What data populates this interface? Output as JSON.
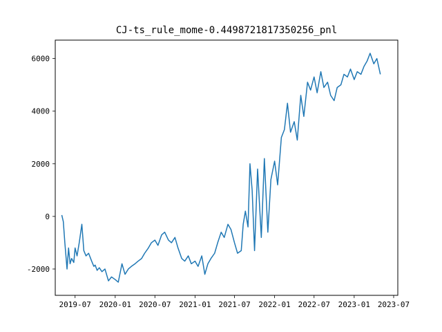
{
  "chart_data": {
    "type": "line",
    "title": "CJ-ts_rule_mome-0.4498721817350256_pnl",
    "xlabel": "",
    "ylabel": "",
    "x_range": [
      "2019-04-01",
      "2023-07-20"
    ],
    "ylim": [
      -3000,
      6700
    ],
    "grid": false,
    "legend": "none",
    "x_ticks": [
      "2019-07",
      "2020-01",
      "2020-07",
      "2021-01",
      "2021-07",
      "2022-01",
      "2022-07",
      "2023-01",
      "2023-07"
    ],
    "y_ticks": [
      -2000,
      0,
      2000,
      4000,
      6000
    ],
    "line_color": "#1f77b4",
    "series": [
      {
        "x": [
          "2019-05-01",
          "2019-05-08",
          "2019-05-15",
          "2019-05-25",
          "2019-06-01",
          "2019-06-08",
          "2019-06-15",
          "2019-06-25",
          "2019-07-01",
          "2019-07-10",
          "2019-07-20",
          "2019-08-01",
          "2019-08-10",
          "2019-08-20",
          "2019-09-01",
          "2019-09-15",
          "2019-09-25",
          "2019-10-01",
          "2019-10-10",
          "2019-10-20",
          "2019-11-01",
          "2019-11-15",
          "2019-12-01",
          "2019-12-15",
          "2020-01-01",
          "2020-01-15",
          "2020-02-01",
          "2020-02-15",
          "2020-03-01",
          "2020-03-15",
          "2020-04-01",
          "2020-04-15",
          "2020-05-01",
          "2020-05-15",
          "2020-06-01",
          "2020-06-15",
          "2020-07-01",
          "2020-07-15",
          "2020-08-01",
          "2020-08-15",
          "2020-09-01",
          "2020-09-15",
          "2020-10-01",
          "2020-10-15",
          "2020-11-01",
          "2020-11-15",
          "2020-12-01",
          "2020-12-15",
          "2021-01-01",
          "2021-01-15",
          "2021-02-01",
          "2021-02-15",
          "2021-03-01",
          "2021-03-15",
          "2021-04-01",
          "2021-04-15",
          "2021-05-01",
          "2021-05-15",
          "2021-06-01",
          "2021-06-15",
          "2021-07-01",
          "2021-07-15",
          "2021-08-01",
          "2021-08-10",
          "2021-08-20",
          "2021-09-01",
          "2021-09-10",
          "2021-09-20",
          "2021-10-01",
          "2021-10-15",
          "2021-11-01",
          "2021-11-15",
          "2021-12-01",
          "2021-12-15",
          "2022-01-01",
          "2022-01-15",
          "2022-02-01",
          "2022-02-15",
          "2022-03-01",
          "2022-03-15",
          "2022-04-01",
          "2022-04-15",
          "2022-05-01",
          "2022-05-15",
          "2022-06-01",
          "2022-06-15",
          "2022-07-01",
          "2022-07-15",
          "2022-08-01",
          "2022-08-15",
          "2022-09-01",
          "2022-09-15",
          "2022-10-01",
          "2022-10-15",
          "2022-11-01",
          "2022-11-15",
          "2022-12-01",
          "2022-12-15",
          "2023-01-01",
          "2023-01-15",
          "2023-02-01",
          "2023-02-15",
          "2023-03-01",
          "2023-03-15",
          "2023-04-01",
          "2023-04-15",
          "2023-05-01"
        ],
        "values": [
          50,
          -200,
          -1000,
          -2000,
          -1200,
          -1800,
          -1600,
          -1750,
          -1200,
          -1500,
          -1000,
          -300,
          -1300,
          -1500,
          -1400,
          -1700,
          -1900,
          -1850,
          -2050,
          -1950,
          -2100,
          -2000,
          -2450,
          -2300,
          -2400,
          -2500,
          -1800,
          -2200,
          -2000,
          -1900,
          -1800,
          -1700,
          -1600,
          -1400,
          -1200,
          -1000,
          -900,
          -1100,
          -700,
          -600,
          -900,
          -1000,
          -800,
          -1200,
          -1600,
          -1700,
          -1500,
          -1800,
          -1700,
          -1900,
          -1500,
          -2200,
          -1800,
          -1600,
          -1400,
          -1000,
          -600,
          -800,
          -300,
          -500,
          -1000,
          -1400,
          -1300,
          -300,
          200,
          -400,
          2000,
          1000,
          -1300,
          1800,
          -800,
          2200,
          -600,
          1400,
          2100,
          1200,
          3000,
          3300,
          4300,
          3200,
          3600,
          2900,
          4600,
          3800,
          5100,
          4800,
          5300,
          4700,
          5500,
          4900,
          5100,
          4600,
          4400,
          4900,
          5000,
          5400,
          5300,
          5600,
          5200,
          5500,
          5400,
          5700,
          5900,
          6200,
          5800,
          6000,
          5400
        ]
      }
    ]
  }
}
